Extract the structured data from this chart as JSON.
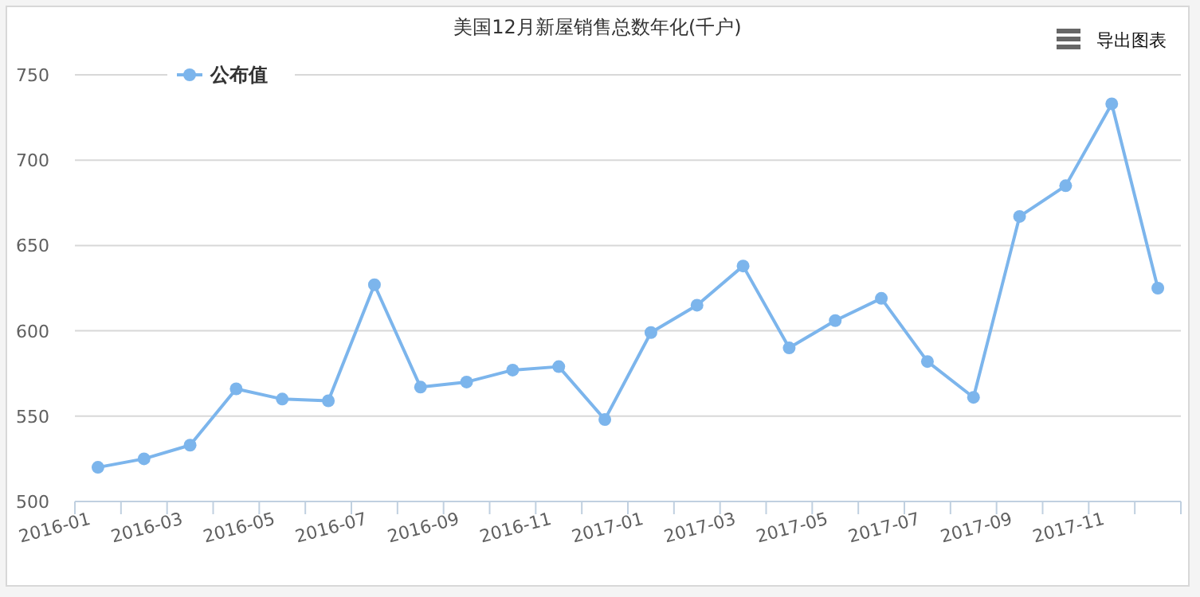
{
  "chart_data": {
    "type": "line",
    "title": "美国12月新屋销售总数年化(千户)",
    "categories": [
      "2016-01",
      null,
      "2016-03",
      null,
      "2016-05",
      null,
      "2016-07",
      null,
      "2016-09",
      null,
      "2016-11",
      null,
      "2017-01",
      null,
      "2017-03",
      null,
      "2017-05",
      null,
      "2017-07",
      null,
      "2017-09",
      null,
      "2017-11",
      null
    ],
    "series": [
      {
        "name": "公布值",
        "color": "#7cb5ec",
        "values": [
          520,
          525,
          533,
          566,
          560,
          559,
          627,
          567,
          570,
          577,
          579,
          548,
          599,
          615,
          638,
          590,
          606,
          619,
          582,
          561,
          667,
          685,
          733,
          625
        ]
      }
    ],
    "ylim": [
      500,
      750
    ],
    "yticks": [
      500,
      550,
      600,
      650,
      700,
      750
    ],
    "grid": "y",
    "legend": "top left",
    "marker": "circle",
    "line_style": "solid",
    "annotations": [
      "导出图表"
    ]
  }
}
